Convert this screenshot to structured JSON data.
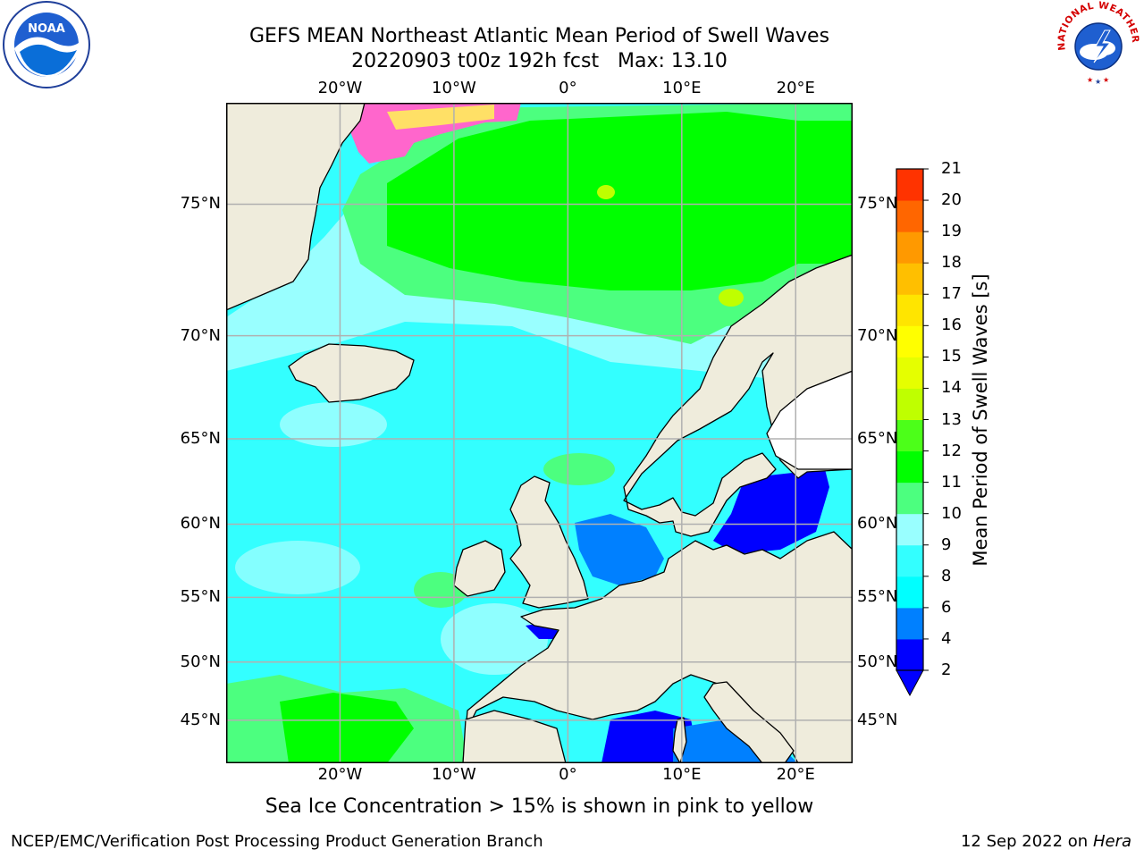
{
  "header": {
    "title_line1": "GEFS MEAN Northeast Atlantic Mean Period of Swell Waves",
    "title_line2": "20220903 t00z 192h fcst   Max: 13.10"
  },
  "logos": {
    "noaa": {
      "text": "NOAA",
      "icon": "noaa-logo-icon"
    },
    "nws": {
      "text": "NATIONAL WEATHER SERVICE",
      "icon": "nws-logo-icon"
    }
  },
  "map": {
    "lon_labels": [
      "20°W",
      "10°W",
      "0°",
      "10°E",
      "20°E"
    ],
    "lat_labels": [
      "75°N",
      "70°N",
      "65°N",
      "60°N",
      "55°N",
      "50°N",
      "45°N"
    ],
    "lon_range": [
      -30,
      25
    ],
    "lat_range": [
      41,
      78
    ]
  },
  "colorbar": {
    "title": "Mean Period of Swell Waves [s]",
    "levels": [
      "2",
      "4",
      "6",
      "8",
      "9",
      "10",
      "11",
      "12",
      "13",
      "14",
      "15",
      "16",
      "17",
      "18",
      "19",
      "20",
      "21"
    ],
    "colors": [
      "#0000ff",
      "#0080ff",
      "#00ffff",
      "#33ffff",
      "#99ffff",
      "#4cff7f",
      "#00ff00",
      "#4cff19",
      "#bfff00",
      "#e5ff00",
      "#ffff00",
      "#ffe500",
      "#ffbf00",
      "#ff9900",
      "#ff6600",
      "#ff3300",
      "#ff0000"
    ],
    "under_color": "#0000ff"
  },
  "caption": "Sea Ice Concentration > 15% is shown in pink to yellow",
  "footer": {
    "left": "NCEP/EMC/Verification Post Processing Product Generation Branch",
    "right_date": "12 Sep 2022 on",
    "right_machine": "Hera"
  }
}
